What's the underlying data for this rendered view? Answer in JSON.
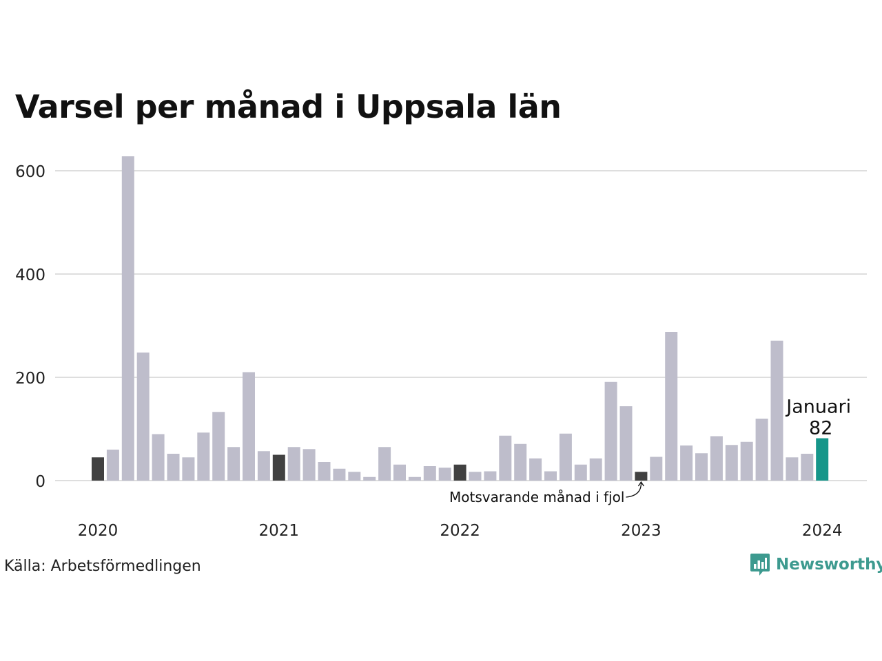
{
  "chart_data": {
    "type": "bar",
    "title": "Varsel per månad i Uppsala län",
    "ylim": [
      0,
      640
    ],
    "yticks": [
      0,
      200,
      400,
      600
    ],
    "xticks": [
      {
        "label": "2020",
        "index": 0
      },
      {
        "label": "2021",
        "index": 12
      },
      {
        "label": "2022",
        "index": 24
      },
      {
        "label": "2023",
        "index": 36
      },
      {
        "label": "2024",
        "index": 48
      }
    ],
    "grid": true,
    "legend": "none",
    "start": "2020-01",
    "values": [
      45,
      60,
      628,
      248,
      90,
      52,
      45,
      93,
      133,
      65,
      210,
      57,
      50,
      65,
      61,
      36,
      23,
      17,
      7,
      65,
      31,
      7,
      28,
      25,
      31,
      17,
      18,
      87,
      71,
      43,
      18,
      91,
      31,
      43,
      191,
      144,
      17,
      46,
      288,
      68,
      53,
      86,
      69,
      75,
      120,
      271,
      45,
      52,
      82
    ],
    "highlight_index": 48,
    "comparison_indices": [
      0,
      12,
      24,
      36
    ],
    "colors": {
      "default": "#bebdcb",
      "comparison": "#414141",
      "highlight": "#16968a",
      "grid": "#dedede"
    },
    "annotations": {
      "highlight_month": "Januari",
      "highlight_value": "82",
      "comparison": "Motsvarande månad i fjol"
    }
  },
  "footer": {
    "source": "Källa: Arbetsförmedlingen",
    "brand": "Newsworthy",
    "brand_icon": "newsworthy-logo-icon",
    "brand_color": "#3d9a8f"
  }
}
